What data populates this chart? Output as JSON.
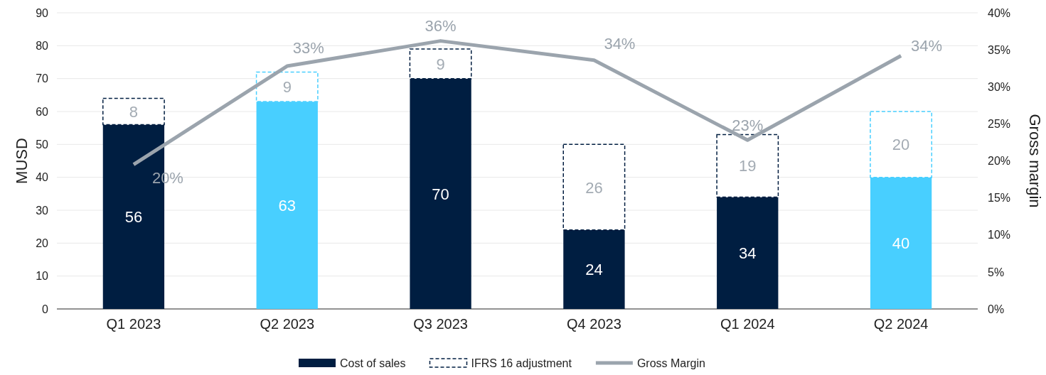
{
  "chart_data": {
    "type": "bar",
    "stacked": true,
    "ylabel": "MUSD",
    "y2label": "Gross margin",
    "categories": [
      "Q1 2023",
      "Q2 2023",
      "Q3 2023",
      "Q4 2023",
      "Q1 2024",
      "Q2 2024"
    ],
    "series": [
      {
        "name": "Cost of sales",
        "color": "#001e41",
        "colors": [
          "#001e41",
          "#48cfff",
          "#001e41",
          "#001e41",
          "#001e41",
          "#48cfff"
        ],
        "values": [
          56,
          63,
          70,
          24,
          34,
          40
        ],
        "data_labels": true
      },
      {
        "name": "IFRS 16 adjustment",
        "color": "#001e41",
        "colors": [
          "#001e41",
          "#48cfff",
          "#001e41",
          "#001e41",
          "#001e41",
          "#48cfff"
        ],
        "line_style": "dashed",
        "values": [
          8,
          9,
          9,
          26,
          19,
          20
        ],
        "data_labels": true
      },
      {
        "name": "Gross Margin",
        "type": "line",
        "axis": "y2",
        "color": "#9ba4ad",
        "values": [
          19.5,
          32.8,
          36.2,
          33.6,
          22.8,
          34.2
        ],
        "value_labels": [
          "20%",
          "33%",
          "36%",
          "34%",
          "23%",
          "34%"
        ],
        "marker": "none"
      }
    ],
    "ylim": [
      0,
      90
    ],
    "yticks": [
      0,
      10,
      20,
      30,
      40,
      50,
      60,
      70,
      80,
      90
    ],
    "y2lim": [
      0,
      40
    ],
    "y2ticks": [
      {
        "value": 0,
        "label": "0%"
      },
      {
        "value": 5,
        "label": "5%"
      },
      {
        "value": 10,
        "label": "10%"
      },
      {
        "value": 15,
        "label": "15%"
      },
      {
        "value": 20,
        "label": "20%"
      },
      {
        "value": 25,
        "label": "25%"
      },
      {
        "value": 30,
        "label": "30%"
      },
      {
        "value": 35,
        "label": "35%"
      },
      {
        "value": 40,
        "label": "40%"
      }
    ],
    "grid": "y",
    "legend": "bottom"
  }
}
